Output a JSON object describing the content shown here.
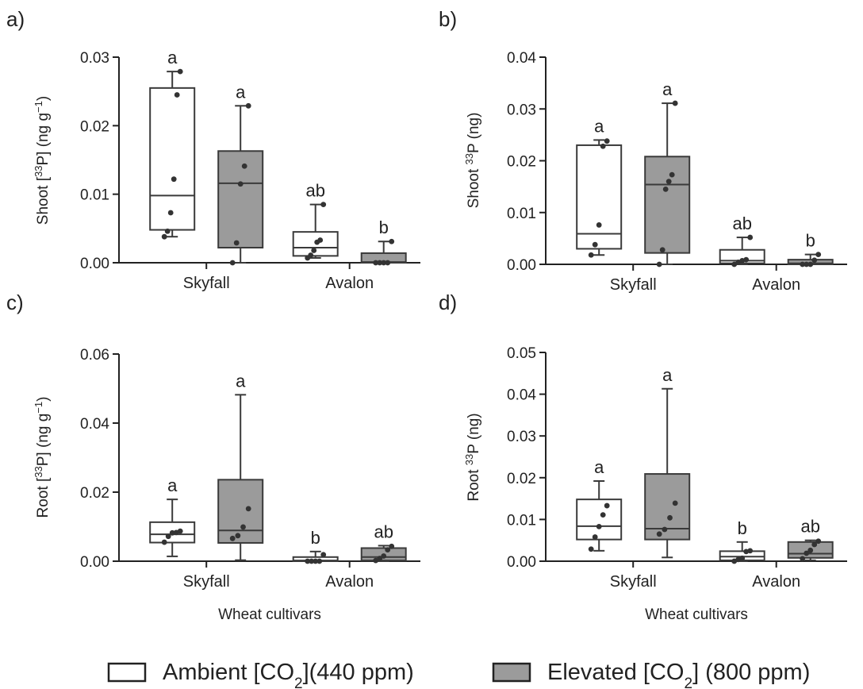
{
  "colors": {
    "ambient": "#ffffff",
    "elevated": "#9b9b9b",
    "stroke": "#3a3a3a",
    "point": "#333333"
  },
  "legend": {
    "ambient": {
      "pre": "Ambient [CO",
      "sub": "2",
      "post": "](440 ppm)"
    },
    "elevated": {
      "pre": "Elevated [CO",
      "sub": "2",
      "post": "] (800 ppm)"
    }
  },
  "chart_data": [
    {
      "panel": "a)",
      "type": "box",
      "ylabel": {
        "pre": "Shoot [",
        "sup": "33",
        "mid": "P] (ng g",
        "sup2": "−1",
        "post": ")"
      },
      "xlabel": "",
      "ylim": [
        0,
        0.03
      ],
      "yticks": [
        0,
        0.01,
        0.02,
        0.03
      ],
      "ytick_labels": [
        "0.00",
        "0.01",
        "0.02",
        "0.03"
      ],
      "categories": [
        "Skyfall",
        "Avalon"
      ],
      "boxes": [
        {
          "cultivar": "Skyfall",
          "group": "ambient",
          "min": 0.0038,
          "q1": 0.0048,
          "median": 0.0098,
          "q3": 0.0255,
          "max": 0.0279,
          "points": [
            0.0038,
            0.0046,
            0.0073,
            0.0122,
            0.0245,
            0.0279
          ],
          "sig": "a"
        },
        {
          "cultivar": "Skyfall",
          "group": "elevated",
          "min": 0.0,
          "q1": 0.0022,
          "median": 0.0116,
          "q3": 0.0163,
          "max": 0.0229,
          "points": [
            0.0,
            0.0029,
            0.0115,
            0.0141,
            0.0229
          ],
          "sig": "a"
        },
        {
          "cultivar": "Avalon",
          "group": "ambient",
          "min": 0.0007,
          "q1": 0.001,
          "median": 0.0022,
          "q3": 0.0045,
          "max": 0.0085,
          "points": [
            0.0007,
            0.0011,
            0.0018,
            0.003,
            0.0033,
            0.0085
          ],
          "sig": "ab"
        },
        {
          "cultivar": "Avalon",
          "group": "elevated",
          "min": 0.0,
          "q1": 0.0,
          "median": 0.0001,
          "q3": 0.0014,
          "max": 0.0031,
          "points": [
            0.0,
            0.0,
            0.0,
            0.0,
            0.0031
          ],
          "sig": "b"
        }
      ]
    },
    {
      "panel": "b)",
      "type": "box",
      "ylabel": {
        "pre": "Shoot ",
        "sup": "33",
        "mid": "P (ng)",
        "sup2": "",
        "post": ""
      },
      "xlabel": "",
      "ylim": [
        0,
        0.04
      ],
      "yticks": [
        0,
        0.01,
        0.02,
        0.03,
        0.04
      ],
      "ytick_labels": [
        "0.00",
        "0.01",
        "0.02",
        "0.03",
        "0.04"
      ],
      "categories": [
        "Skyfall",
        "Avalon"
      ],
      "boxes": [
        {
          "cultivar": "Skyfall",
          "group": "ambient",
          "min": 0.0018,
          "q1": 0.003,
          "median": 0.0059,
          "q3": 0.023,
          "max": 0.024,
          "points": [
            0.0018,
            0.0038,
            0.0076,
            0.0228,
            0.0238
          ],
          "sig": "a"
        },
        {
          "cultivar": "Skyfall",
          "group": "elevated",
          "min": 0.0,
          "q1": 0.0022,
          "median": 0.0154,
          "q3": 0.0208,
          "max": 0.0311,
          "points": [
            0.0,
            0.0028,
            0.0145,
            0.016,
            0.0173,
            0.0311
          ],
          "sig": "a"
        },
        {
          "cultivar": "Avalon",
          "group": "ambient",
          "min": 0.0,
          "q1": 0.0002,
          "median": 0.0007,
          "q3": 0.0028,
          "max": 0.0052,
          "points": [
            0.0,
            0.0004,
            0.0007,
            0.0009,
            0.0052
          ],
          "sig": "ab"
        },
        {
          "cultivar": "Avalon",
          "group": "elevated",
          "min": 0.0,
          "q1": 0.0,
          "median": 0.0002,
          "q3": 0.0009,
          "max": 0.0019,
          "points": [
            0.0,
            0.0,
            0.0,
            0.0008,
            0.0019
          ],
          "sig": "b"
        }
      ]
    },
    {
      "panel": "c)",
      "type": "box",
      "ylabel": {
        "pre": "Root [",
        "sup": "33",
        "mid": "P] (ng g",
        "sup2": "−1",
        "post": ")"
      },
      "xlabel": "Wheat cultivars",
      "ylim": [
        0,
        0.06
      ],
      "yticks": [
        0,
        0.02,
        0.04,
        0.06
      ],
      "ytick_labels": [
        "0.00",
        "0.02",
        "0.04",
        "0.06"
      ],
      "categories": [
        "Skyfall",
        "Avalon"
      ],
      "boxes": [
        {
          "cultivar": "Skyfall",
          "group": "ambient",
          "min": 0.0014,
          "q1": 0.0054,
          "median": 0.0078,
          "q3": 0.0113,
          "max": 0.0179,
          "points": [
            0.0055,
            0.0072,
            0.0082,
            0.0083,
            0.0087
          ],
          "sig": "a"
        },
        {
          "cultivar": "Skyfall",
          "group": "elevated",
          "min": 0.0003,
          "q1": 0.0053,
          "median": 0.0089,
          "q3": 0.0236,
          "max": 0.0482,
          "points": [
            0.0066,
            0.0074,
            0.0099,
            0.0152
          ],
          "sig": "a"
        },
        {
          "cultivar": "Avalon",
          "group": "ambient",
          "min": 0.0,
          "q1": 0.0,
          "median": 0.0002,
          "q3": 0.0012,
          "max": 0.0028,
          "points": [
            0.0,
            0.0,
            0.0,
            0.0,
            0.0019
          ],
          "sig": "b"
        },
        {
          "cultivar": "Avalon",
          "group": "elevated",
          "min": 0.0,
          "q1": 0.0002,
          "median": 0.0012,
          "q3": 0.0038,
          "max": 0.0045,
          "points": [
            0.0002,
            0.0008,
            0.0015,
            0.0033,
            0.0043
          ],
          "sig": "ab"
        }
      ]
    },
    {
      "panel": "d)",
      "type": "box",
      "ylabel": {
        "pre": "Root ",
        "sup": "33",
        "mid": "P (ng)",
        "sup2": "",
        "post": ""
      },
      "xlabel": "Wheat cultivars",
      "ylim": [
        0,
        0.05
      ],
      "yticks": [
        0,
        0.01,
        0.02,
        0.03,
        0.04,
        0.05
      ],
      "ytick_labels": [
        "0.00",
        "0.01",
        "0.02",
        "0.03",
        "0.04",
        "0.05"
      ],
      "categories": [
        "Skyfall",
        "Avalon"
      ],
      "boxes": [
        {
          "cultivar": "Skyfall",
          "group": "ambient",
          "min": 0.0025,
          "q1": 0.0052,
          "median": 0.0084,
          "q3": 0.0148,
          "max": 0.0192,
          "points": [
            0.0029,
            0.0058,
            0.0083,
            0.0111,
            0.0133
          ],
          "sig": "a"
        },
        {
          "cultivar": "Skyfall",
          "group": "elevated",
          "min": 0.0009,
          "q1": 0.0052,
          "median": 0.0078,
          "q3": 0.0209,
          "max": 0.0413,
          "points": [
            0.0065,
            0.0076,
            0.0104,
            0.0139
          ],
          "sig": "a"
        },
        {
          "cultivar": "Avalon",
          "group": "ambient",
          "min": 0.0,
          "q1": 0.0002,
          "median": 0.0011,
          "q3": 0.0024,
          "max": 0.0046,
          "points": [
            0.0,
            0.0004,
            0.0007,
            0.0023,
            0.0025
          ],
          "sig": "b"
        },
        {
          "cultivar": "Avalon",
          "group": "elevated",
          "min": 0.0002,
          "q1": 0.0008,
          "median": 0.0018,
          "q3": 0.0046,
          "max": 0.005,
          "points": [
            0.0006,
            0.0019,
            0.0026,
            0.004,
            0.0048
          ],
          "sig": "ab"
        }
      ]
    }
  ]
}
